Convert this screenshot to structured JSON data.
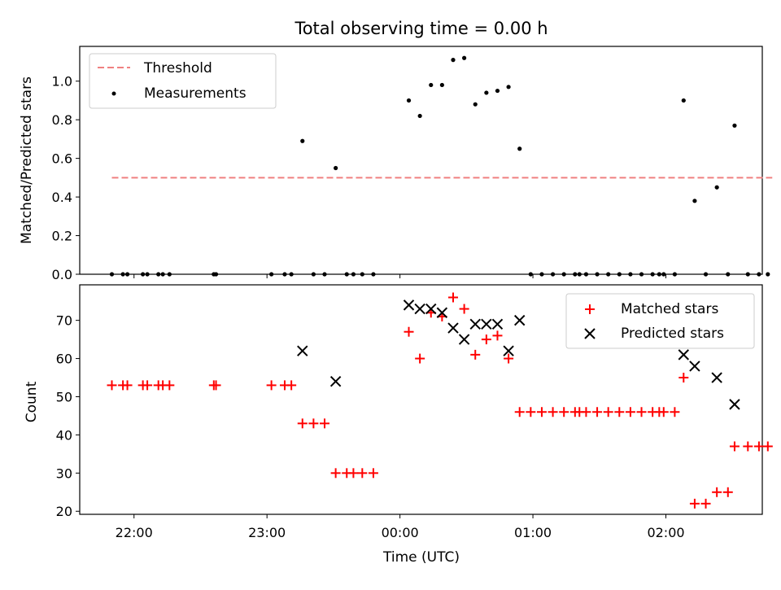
{
  "figure": {
    "title": "Total observing time = 0.00 h"
  },
  "chart_data": [
    {
      "type": "scatter",
      "ylabel": "Matched/Predicted stars",
      "xlabel": "",
      "ylim": [
        0,
        1.18
      ],
      "yticks": [
        "0.0",
        "0.2",
        "0.4",
        "0.6",
        "0.8",
        "1.0"
      ],
      "grid": false,
      "legend_position": "upper-left",
      "threshold": {
        "name": "Threshold",
        "value": 0.5,
        "x_start": "21:50",
        "x_end": "02:48",
        "color": "#f08080",
        "style": "dashed"
      },
      "series": [
        {
          "name": "Measurements",
          "color": "#000000",
          "marker": "dot",
          "points": [
            [
              "21:50",
              0
            ],
            [
              "21:55",
              0
            ],
            [
              "21:57",
              0
            ],
            [
              "22:04",
              0
            ],
            [
              "22:06",
              0
            ],
            [
              "22:11",
              0
            ],
            [
              "22:13",
              0
            ],
            [
              "22:16",
              0
            ],
            [
              "22:36",
              0
            ],
            [
              "22:37",
              0
            ],
            [
              "23:02",
              0
            ],
            [
              "23:08",
              0
            ],
            [
              "23:11",
              0
            ],
            [
              "23:16",
              0.69
            ],
            [
              "23:21",
              0
            ],
            [
              "23:26",
              0
            ],
            [
              "23:31",
              0.55
            ],
            [
              "23:36",
              0
            ],
            [
              "23:39",
              0
            ],
            [
              "23:43",
              0
            ],
            [
              "23:48",
              0
            ],
            [
              "00:04",
              0.9
            ],
            [
              "00:09",
              0.82
            ],
            [
              "00:14",
              0.98
            ],
            [
              "00:19",
              0.98
            ],
            [
              "00:24",
              1.11
            ],
            [
              "00:29",
              1.12
            ],
            [
              "00:34",
              0.88
            ],
            [
              "00:39",
              0.94
            ],
            [
              "00:44",
              0.95
            ],
            [
              "00:49",
              0.97
            ],
            [
              "00:54",
              0.65
            ],
            [
              "00:59",
              0
            ],
            [
              "01:04",
              0
            ],
            [
              "01:09",
              0
            ],
            [
              "01:14",
              0
            ],
            [
              "01:19",
              0
            ],
            [
              "01:21",
              0
            ],
            [
              "01:24",
              0
            ],
            [
              "01:29",
              0
            ],
            [
              "01:34",
              0
            ],
            [
              "01:39",
              0
            ],
            [
              "01:44",
              0
            ],
            [
              "01:49",
              0
            ],
            [
              "01:54",
              0
            ],
            [
              "01:57",
              0
            ],
            [
              "01:59",
              0
            ],
            [
              "02:04",
              0
            ],
            [
              "02:08",
              0.9
            ],
            [
              "02:13",
              0.38
            ],
            [
              "02:18",
              0
            ],
            [
              "02:23",
              0.45
            ],
            [
              "02:28",
              0
            ],
            [
              "02:31",
              0.77
            ],
            [
              "02:37",
              0
            ],
            [
              "02:42",
              0
            ],
            [
              "02:46",
              0
            ]
          ]
        }
      ]
    },
    {
      "type": "scatter",
      "xlabel": "Time (UTC)",
      "ylabel": "Count",
      "ylim": [
        19.2,
        79.3
      ],
      "yticks": [
        "20",
        "30",
        "40",
        "50",
        "60",
        "70"
      ],
      "xticks": [
        "22:00",
        "23:00",
        "00:00",
        "01:00",
        "02:00"
      ],
      "grid": false,
      "legend_position": "upper-right",
      "series": [
        {
          "name": "Matched stars",
          "color": "#ff0000",
          "marker": "plus",
          "points": [
            [
              "21:50",
              53
            ],
            [
              "21:55",
              53
            ],
            [
              "21:57",
              53
            ],
            [
              "22:04",
              53
            ],
            [
              "22:06",
              53
            ],
            [
              "22:11",
              53
            ],
            [
              "22:13",
              53
            ],
            [
              "22:16",
              53
            ],
            [
              "22:36",
              53
            ],
            [
              "22:37",
              53
            ],
            [
              "23:02",
              53
            ],
            [
              "23:08",
              53
            ],
            [
              "23:11",
              53
            ],
            [
              "23:16",
              43
            ],
            [
              "23:21",
              43
            ],
            [
              "23:26",
              43
            ],
            [
              "23:31",
              30
            ],
            [
              "23:36",
              30
            ],
            [
              "23:39",
              30
            ],
            [
              "23:43",
              30
            ],
            [
              "23:48",
              30
            ],
            [
              "00:04",
              67
            ],
            [
              "00:09",
              60
            ],
            [
              "00:14",
              72
            ],
            [
              "00:19",
              71
            ],
            [
              "00:24",
              76
            ],
            [
              "00:29",
              73
            ],
            [
              "00:34",
              61
            ],
            [
              "00:39",
              65
            ],
            [
              "00:44",
              66
            ],
            [
              "00:49",
              60
            ],
            [
              "00:54",
              46
            ],
            [
              "00:59",
              46
            ],
            [
              "01:04",
              46
            ],
            [
              "01:09",
              46
            ],
            [
              "01:14",
              46
            ],
            [
              "01:19",
              46
            ],
            [
              "01:21",
              46
            ],
            [
              "01:24",
              46
            ],
            [
              "01:29",
              46
            ],
            [
              "01:34",
              46
            ],
            [
              "01:39",
              46
            ],
            [
              "01:44",
              46
            ],
            [
              "01:49",
              46
            ],
            [
              "01:54",
              46
            ],
            [
              "01:57",
              46
            ],
            [
              "01:59",
              46
            ],
            [
              "02:04",
              46
            ],
            [
              "02:08",
              55
            ],
            [
              "02:13",
              22
            ],
            [
              "02:18",
              22
            ],
            [
              "02:23",
              25
            ],
            [
              "02:28",
              25
            ],
            [
              "02:31",
              37
            ],
            [
              "02:37",
              37
            ],
            [
              "02:42",
              37
            ],
            [
              "02:46",
              37
            ]
          ]
        },
        {
          "name": "Predicted stars",
          "color": "#000000",
          "marker": "cross",
          "points": [
            [
              "23:16",
              62
            ],
            [
              "23:31",
              54
            ],
            [
              "00:04",
              74
            ],
            [
              "00:09",
              73
            ],
            [
              "00:14",
              73
            ],
            [
              "00:19",
              72
            ],
            [
              "00:24",
              68
            ],
            [
              "00:29",
              65
            ],
            [
              "00:34",
              69
            ],
            [
              "00:39",
              69
            ],
            [
              "00:44",
              69
            ],
            [
              "00:49",
              62
            ],
            [
              "00:54",
              70
            ],
            [
              "02:08",
              61
            ],
            [
              "02:13",
              58
            ],
            [
              "02:23",
              55
            ],
            [
              "02:31",
              48
            ]
          ]
        }
      ]
    }
  ]
}
